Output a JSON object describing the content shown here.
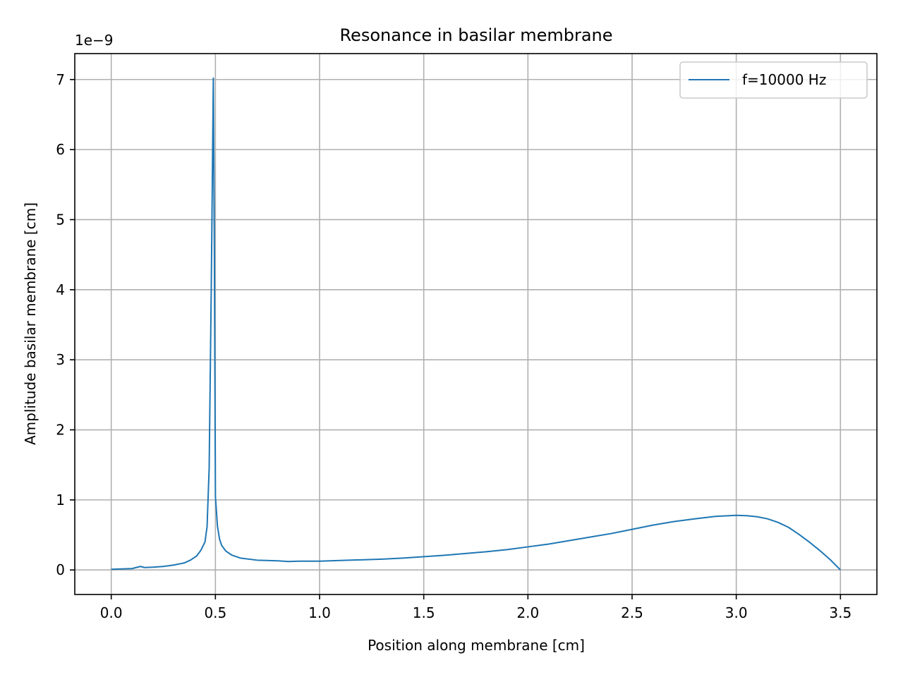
{
  "chart_data": {
    "type": "line",
    "title": "Resonance in basilar membrane",
    "xlabel": "Position along membrane [cm]",
    "ylabel": "Amplitude basilar membrane [cm]",
    "y_offset_label": "1e−9",
    "xlim": [
      -0.175,
      3.675
    ],
    "ylim": [
      -0.35,
      7.37
    ],
    "x_ticks": [
      0.0,
      0.5,
      1.0,
      1.5,
      2.0,
      2.5,
      3.0,
      3.5
    ],
    "x_tick_labels": [
      "0.0",
      "0.5",
      "1.0",
      "1.5",
      "2.0",
      "2.5",
      "3.0",
      "3.5"
    ],
    "y_ticks": [
      0,
      1,
      2,
      3,
      4,
      5,
      6,
      7
    ],
    "y_tick_labels": [
      "0",
      "1",
      "2",
      "3",
      "4",
      "5",
      "6",
      "7"
    ],
    "grid": true,
    "legend_position": "top-right",
    "series": [
      {
        "name": "f=10000 Hz",
        "color": "#1f77b4",
        "x": [
          0.0,
          0.05,
          0.1,
          0.12,
          0.14,
          0.16,
          0.2,
          0.25,
          0.3,
          0.35,
          0.38,
          0.41,
          0.43,
          0.45,
          0.46,
          0.47,
          0.48,
          0.49,
          0.495,
          0.5,
          0.51,
          0.52,
          0.53,
          0.55,
          0.58,
          0.62,
          0.7,
          0.8,
          0.85,
          0.9,
          1.0,
          1.1,
          1.2,
          1.3,
          1.4,
          1.5,
          1.6,
          1.7,
          1.8,
          1.9,
          2.0,
          2.1,
          2.2,
          2.3,
          2.4,
          2.5,
          2.6,
          2.7,
          2.8,
          2.9,
          3.0,
          3.05,
          3.1,
          3.15,
          3.2,
          3.25,
          3.3,
          3.35,
          3.4,
          3.45,
          3.5
        ],
        "y": [
          0.01,
          0.015,
          0.02,
          0.035,
          0.05,
          0.035,
          0.04,
          0.05,
          0.07,
          0.1,
          0.14,
          0.2,
          0.28,
          0.4,
          0.62,
          1.45,
          4.0,
          7.02,
          4.5,
          1.05,
          0.62,
          0.44,
          0.35,
          0.27,
          0.21,
          0.17,
          0.14,
          0.13,
          0.12,
          0.125,
          0.125,
          0.135,
          0.145,
          0.155,
          0.17,
          0.19,
          0.21,
          0.235,
          0.26,
          0.29,
          0.33,
          0.37,
          0.42,
          0.47,
          0.52,
          0.58,
          0.64,
          0.69,
          0.73,
          0.765,
          0.78,
          0.775,
          0.76,
          0.73,
          0.68,
          0.61,
          0.51,
          0.4,
          0.28,
          0.15,
          0.0
        ]
      }
    ]
  }
}
